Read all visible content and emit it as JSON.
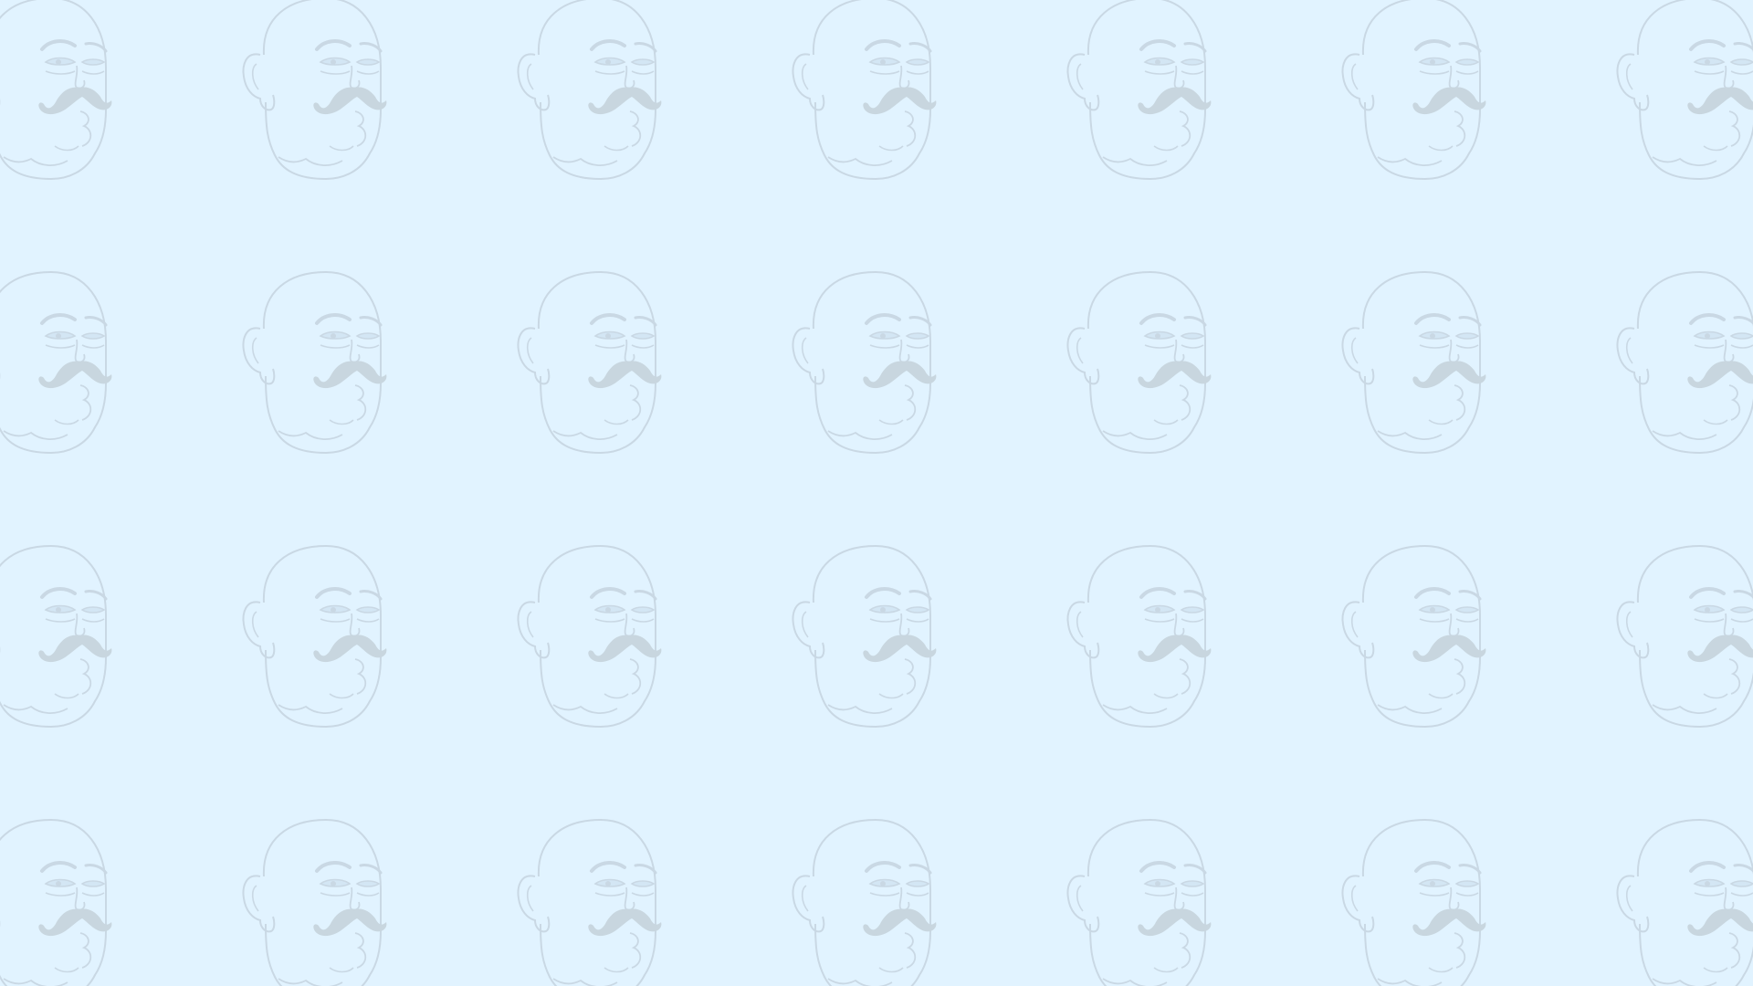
{
  "screen": {
    "type": "desktop-wallpaper",
    "pattern_motif": "bald-mustached-man-face",
    "rows": 4,
    "columns": 7,
    "colors": {
      "background": "#e1f3ff",
      "line": "#c9d8e4",
      "mustache": "#c8d6df",
      "eye_shadow": "#d3e6f4"
    }
  }
}
